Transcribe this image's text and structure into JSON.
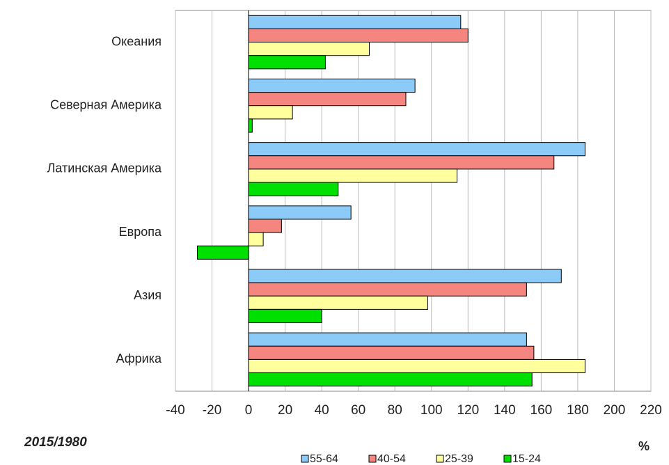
{
  "chart_data": {
    "type": "hbar",
    "annotation": "2015/1980",
    "x_label": "%",
    "categories": [
      "Океания",
      "Северная Америка",
      "Латинская Америка",
      "Европа",
      "Азия",
      "Африка"
    ],
    "series": [
      {
        "name": "55-64",
        "color": "#8ccaf7",
        "values": [
          116,
          91,
          184,
          56,
          171,
          152
        ]
      },
      {
        "name": "40-54",
        "color": "#f4857f",
        "values": [
          120,
          86,
          167,
          18,
          152,
          156
        ]
      },
      {
        "name": "25-39",
        "color": "#ffff9e",
        "values": [
          66,
          24,
          114,
          8,
          98,
          184
        ]
      },
      {
        "name": "15-24",
        "color": "#00e000",
        "values": [
          42,
          2,
          49,
          -28,
          40,
          155
        ]
      }
    ],
    "xlim": [
      -40,
      220
    ],
    "xticks": [
      -40,
      -20,
      0,
      20,
      40,
      60,
      80,
      100,
      120,
      140,
      160,
      180,
      200,
      220
    ],
    "grid": true,
    "legend": "bottom"
  }
}
